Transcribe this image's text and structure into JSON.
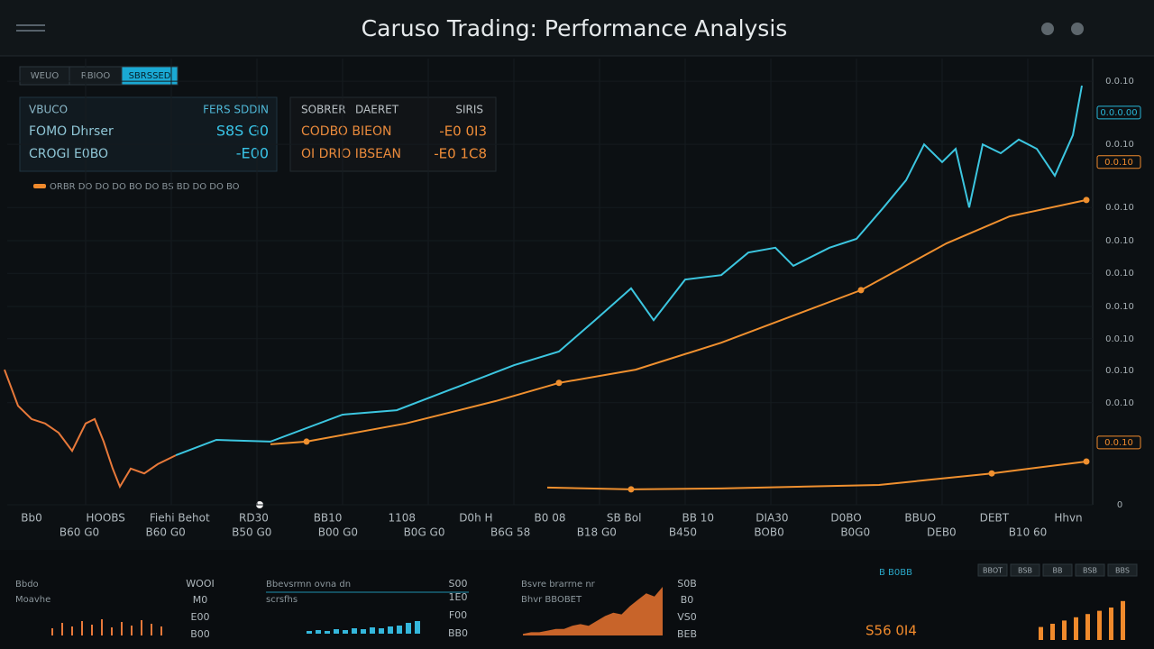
{
  "header": {
    "title": "Caruso Trading: Performance Analysis"
  },
  "tabs": [
    "WEUO",
    "RBIOO",
    "SBRSSED"
  ],
  "panel_left": {
    "header": [
      "VBUCO",
      "FERS SDDIN"
    ],
    "rows": [
      [
        "FOMO Dhrser",
        "S8S G0"
      ],
      [
        "CROGI E0BO",
        "-E00"
      ]
    ]
  },
  "panel_right": {
    "header": [
      "SOBRER",
      "DAERET",
      "SIRIS"
    ],
    "rows": [
      [
        "CODBO BIEON",
        "-E0 0I3"
      ],
      [
        "OI DRIO IBSEAN",
        "-E0 1C8"
      ]
    ]
  },
  "legend_note": "ORBR DO DO DO BO DO BS BD DO DO BO",
  "chart_data": {
    "type": "line",
    "xlim": [
      0,
      1200
    ],
    "ylim": [
      0,
      100
    ],
    "yticks": [
      {
        "value": 95.9,
        "label": "0.0.10"
      },
      {
        "value": 81.6,
        "label": "0.0.10"
      },
      {
        "value": 67.3,
        "label": "0.0.10"
      },
      {
        "value": 59.8,
        "label": "0.0.10"
      },
      {
        "value": 52.4,
        "label": "0.0.10"
      },
      {
        "value": 44.9,
        "label": "0.0.10"
      },
      {
        "value": 37.6,
        "label": "0.0.10"
      },
      {
        "value": 30.4,
        "label": "0.0.10"
      },
      {
        "value": 23.1,
        "label": "0.0.10"
      },
      {
        "value": 0,
        "label": "0"
      }
    ],
    "price_tags": [
      {
        "value": 88.8,
        "label": "0.0.0.00",
        "color": "#29b6d8"
      },
      {
        "value": 77.6,
        "label": "0.0.10",
        "color": "#f08a2c"
      },
      {
        "value": 14.1,
        "label": "0.0.10",
        "color": "#f08a2c"
      }
    ],
    "x_labels": [
      "Bb0",
      "HOOBS",
      "Fiehi Behot",
      "RD30",
      "BB10",
      "1108",
      "D0h H",
      "B0 08",
      "SB Bol",
      "BB 10",
      "DIA30",
      "D0BO",
      "BBUO",
      "DEBT",
      "Hhvn"
    ],
    "x_labels2": [
      "B60 G0",
      "B60 G0",
      "B50 G0",
      "B00 G0",
      "B0G G0",
      "B6G 58",
      "B18 G0",
      "B450",
      "BOB0",
      "B0G0",
      "DEB0",
      "B10 60"
    ],
    "series": [
      {
        "color": "#e8793a",
        "x": [
          0,
          15,
          30,
          45,
          60,
          75,
          90,
          100,
          110,
          120,
          128,
          140,
          155,
          170,
          190
        ],
        "values": [
          30.6,
          22.4,
          19.4,
          18.4,
          16.3,
          12.2,
          18.4,
          19.4,
          14.3,
          8.2,
          4.1,
          8.2,
          7.1,
          9.2,
          11.2
        ]
      },
      {
        "color": "#3cc6e0",
        "x": [
          190,
          235,
          295,
          375,
          435,
          495,
          565,
          615,
          655,
          695,
          720,
          755,
          795,
          825,
          855,
          875,
          915,
          945,
          975,
          1000,
          1020,
          1040,
          1055,
          1070,
          1085,
          1105,
          1125,
          1145,
          1165,
          1185,
          1195
        ],
        "values": [
          11.2,
          14.7,
          14.3,
          20.4,
          21.4,
          26.1,
          31.6,
          34.7,
          41.8,
          49.0,
          41.8,
          51.0,
          52.0,
          57.1,
          58.2,
          54.1,
          58.2,
          60.2,
          67.3,
          73.5,
          81.6,
          77.6,
          80.6,
          67.3,
          81.6,
          79.6,
          82.7,
          80.6,
          74.5,
          83.7,
          94.9
        ]
      },
      {
        "color": "#f0902f",
        "x": [
          295,
          335,
          445,
          545,
          615,
          700,
          795,
          950,
          1045,
          1115,
          1200
        ],
        "values": [
          13.7,
          14.3,
          18.4,
          23.5,
          27.6,
          30.6,
          36.7,
          48.6,
          59.2,
          65.3,
          69.0
        ]
      },
      {
        "color": "#f0902f",
        "x": [
          602,
          695,
          795,
          970,
          1095,
          1200
        ],
        "values": [
          3.9,
          3.5,
          3.7,
          4.5,
          7.1,
          9.8
        ]
      }
    ]
  },
  "bottom": {
    "p1": {
      "labels": [
        "Bbdo",
        "Moavhe"
      ],
      "side": [
        "WOOI",
        "M0",
        "E00",
        "B00"
      ],
      "bars": [
        8,
        14,
        10,
        16,
        12,
        18,
        9,
        15,
        11,
        17,
        13,
        10
      ]
    },
    "p2": {
      "labels": [
        "Bbevsrmn ovna dn",
        "scrsfhs"
      ],
      "side": [
        "S00",
        "1E0",
        "F00",
        "BB0"
      ],
      "bars": [
        3,
        4,
        3,
        5,
        4,
        6,
        5,
        7,
        6,
        8,
        9,
        12,
        14
      ]
    },
    "p3": {
      "labels": [
        "Bsvre brarrne nr",
        "Bhvr BBOBET"
      ],
      "side": [
        "S0B",
        "B0",
        "VS0",
        "BEB"
      ],
      "area": [
        1,
        2,
        2,
        3,
        4,
        4,
        6,
        7,
        6,
        9,
        12,
        14,
        13,
        18,
        22,
        26,
        24,
        30
      ]
    },
    "p4": {
      "label": "B B0BB",
      "buttons": [
        "BBOT",
        "BSB",
        "BB",
        "BSB",
        "BBS"
      ],
      "value": "S56 0I4",
      "bars": [
        8,
        10,
        12,
        14,
        16,
        18,
        20,
        24
      ]
    }
  }
}
